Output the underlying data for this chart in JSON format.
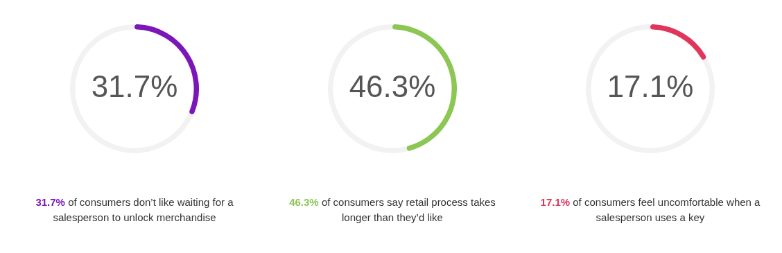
{
  "chart_data": [
    {
      "type": "donut",
      "categories": [
        null,
        null
      ],
      "values": [
        31.7,
        68.3
      ],
      "colors": [
        "#7b16b8",
        "#f2f2f2"
      ],
      "value_labels": [
        "31.7%",
        null
      ],
      "annotations": [
        "31.7%",
        "of consumers don’t like waiting for a salesperson to unlock merchandise"
      ]
    },
    {
      "type": "donut",
      "categories": [
        null,
        null
      ],
      "values": [
        46.3,
        53.7
      ],
      "colors": [
        "#8cc653",
        "#f2f2f2"
      ],
      "value_labels": [
        "46.3%",
        null
      ],
      "annotations": [
        "46.3%",
        "of consumers say retail process takes longer than they’d like"
      ]
    },
    {
      "type": "donut",
      "categories": [
        null,
        null
      ],
      "values": [
        17.1,
        82.9
      ],
      "colors": [
        "#e0365c",
        "#f2f2f2"
      ],
      "value_labels": [
        "17.1%",
        null
      ],
      "annotations": [
        "17.1%",
        "of consumers feel uncomfortable when a salesperson uses a key"
      ]
    }
  ]
}
